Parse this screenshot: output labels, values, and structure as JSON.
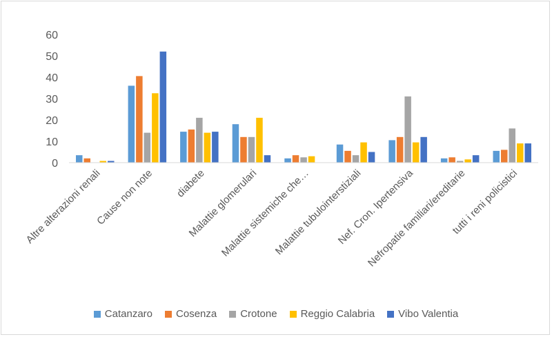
{
  "chart_data": {
    "type": "bar",
    "categories": [
      "Altre alterazioni renali",
      "Cause non note",
      "diabete",
      "Malattie glomerulari",
      "Malattie sistemiche che…",
      "Malattie tubulointerstiziali",
      "Nef. Cron. Ipertensiva",
      "Nefropatie familiari/ereditarie",
      "tutti i reni policistici"
    ],
    "series": [
      {
        "name": "Catanzaro",
        "color": "#5b9bd5",
        "values": [
          3.5,
          36,
          14.5,
          18,
          2,
          8.5,
          10.5,
          2,
          5.5
        ]
      },
      {
        "name": "Cosenza",
        "color": "#ed7d31",
        "values": [
          2,
          40.5,
          15.5,
          12,
          3.5,
          5.5,
          12,
          2.5,
          6
        ]
      },
      {
        "name": "Crotone",
        "color": "#a5a5a5",
        "values": [
          0,
          14,
          21,
          12,
          2.5,
          3.5,
          31,
          0.8,
          16
        ]
      },
      {
        "name": "Reggio Calabria",
        "color": "#ffc000",
        "values": [
          0.8,
          32.5,
          14,
          21,
          3,
          9.5,
          9.5,
          1.5,
          9
        ]
      },
      {
        "name": "Vibo Valentia",
        "color": "#4472c4",
        "values": [
          0.8,
          52,
          14.5,
          3.5,
          0,
          5,
          12,
          3.5,
          9
        ]
      }
    ],
    "ylim": [
      0,
      60
    ],
    "yticks": [
      0,
      10,
      20,
      30,
      40,
      50,
      60
    ],
    "grid": false,
    "legend": "bottom"
  }
}
